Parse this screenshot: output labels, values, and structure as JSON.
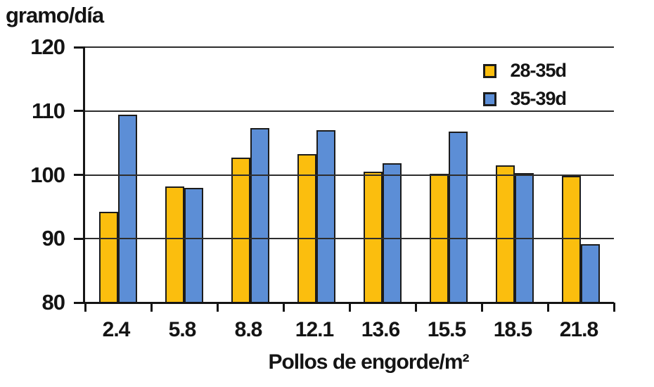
{
  "chart_data": {
    "type": "bar",
    "title": "",
    "ylabel": "gramo/día",
    "xlabel": "Pollos de engorde/m²",
    "categories": [
      "2.4",
      "5.8",
      "8.8",
      "12.1",
      "13.6",
      "15.5",
      "18.5",
      "21.8"
    ],
    "series": [
      {
        "name": "28-35d",
        "color": "#FBBE0E",
        "values": [
          94.2,
          98.2,
          102.7,
          103.2,
          100.5,
          100.2,
          101.5,
          99.8
        ]
      },
      {
        "name": "35-39d",
        "color": "#5C8ED6",
        "values": [
          109.4,
          98.0,
          107.3,
          107.0,
          101.8,
          106.8,
          100.3,
          89.2
        ]
      }
    ],
    "ylim": [
      80,
      120
    ],
    "yticks": [
      80,
      90,
      100,
      110,
      120
    ],
    "grid": true,
    "legend_position": "top-right",
    "colors": {
      "background": "#ffffff",
      "axis": "#141414",
      "gridline": "#2d2d2d",
      "bar_border": "#1c1c1c",
      "text": "#141414"
    }
  }
}
